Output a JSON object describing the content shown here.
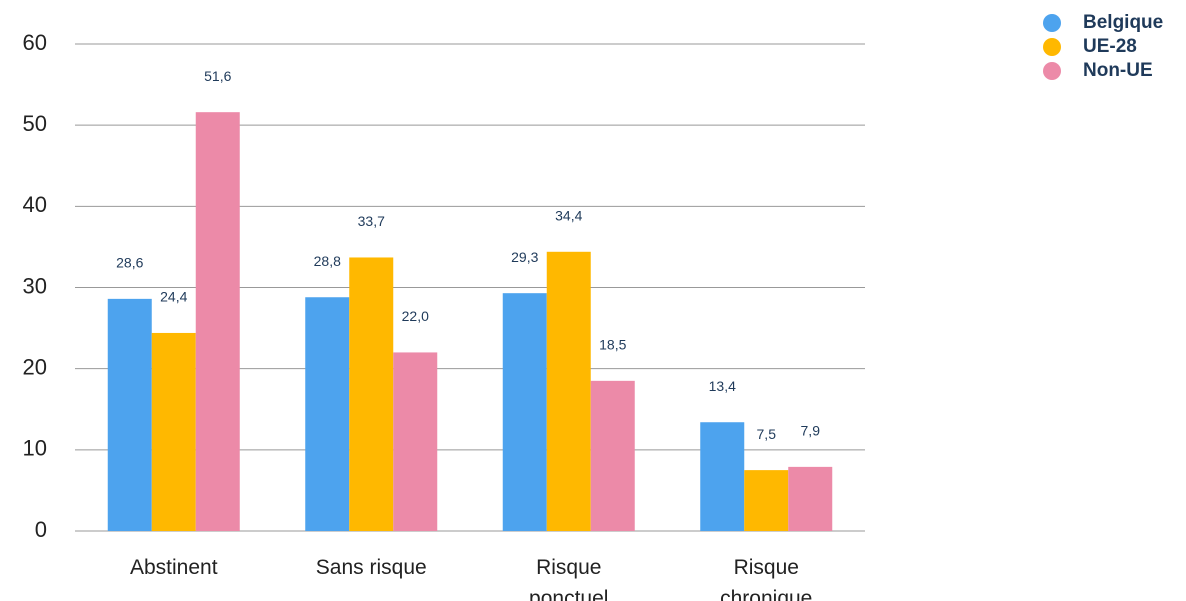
{
  "chart_data": {
    "type": "bar",
    "categories": [
      [
        "Abstinent"
      ],
      [
        "Sans risque"
      ],
      [
        "Risque",
        "ponctuel"
      ],
      [
        "Risque",
        "chronique"
      ]
    ],
    "series": [
      {
        "name": "Belgique",
        "color": "#4da3ee",
        "values": [
          28.6,
          28.8,
          29.3,
          13.4
        ],
        "value_labels": [
          "28,6",
          "28,8",
          "29,3",
          "13,4"
        ]
      },
      {
        "name": "UE-28",
        "color": "#ffb800",
        "values": [
          24.4,
          33.7,
          34.4,
          7.5
        ],
        "value_labels": [
          "24,4",
          "33,7",
          "34,4",
          "7,5"
        ]
      },
      {
        "name": "Non-UE",
        "color": "#ec8aa8",
        "values": [
          51.6,
          22.0,
          18.5,
          7.9
        ],
        "value_labels": [
          "51,6",
          "22,0",
          "18,5",
          "7,9"
        ]
      }
    ],
    "ylim": [
      0,
      60
    ],
    "yticks": [
      0,
      10,
      20,
      30,
      40,
      50,
      60
    ],
    "grid": true,
    "legend": "top-right"
  }
}
